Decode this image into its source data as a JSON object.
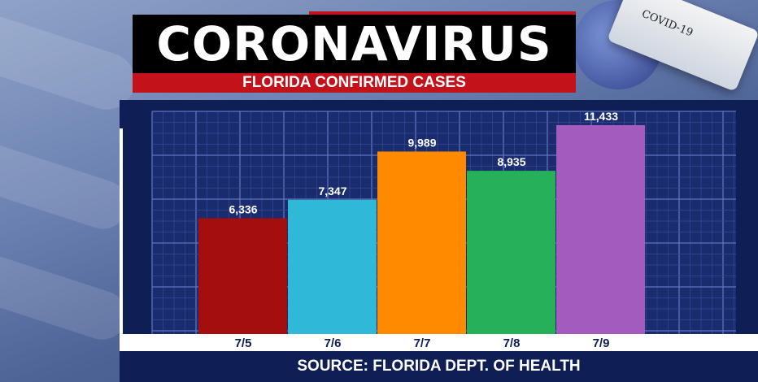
{
  "title": "CORONAVIRUS",
  "subtitle": "FLORIDA CONFIRMED CASES",
  "source": "SOURCE: FLORIDA DEPT. OF HEALTH",
  "tube_label": "COVID-19",
  "colors": {
    "panel": "#0f1e55",
    "title_red": "#c4121b",
    "bars": [
      "#a50e0e",
      "#2fb8d8",
      "#ff8a00",
      "#27b05a",
      "#a35bbd"
    ]
  },
  "chart_data": {
    "type": "bar",
    "title": "FLORIDA CONFIRMED CASES",
    "categories": [
      "7/5",
      "7/6",
      "7/7",
      "7/8",
      "7/9"
    ],
    "values": [
      6336,
      7347,
      9989,
      8935,
      11433
    ],
    "value_labels": [
      "6,336",
      "7,347",
      "9,989",
      "8,935",
      "11,433"
    ],
    "xlabel": "",
    "ylabel": "",
    "ylim": [
      0,
      12500
    ],
    "grid": true,
    "legend": "none"
  }
}
